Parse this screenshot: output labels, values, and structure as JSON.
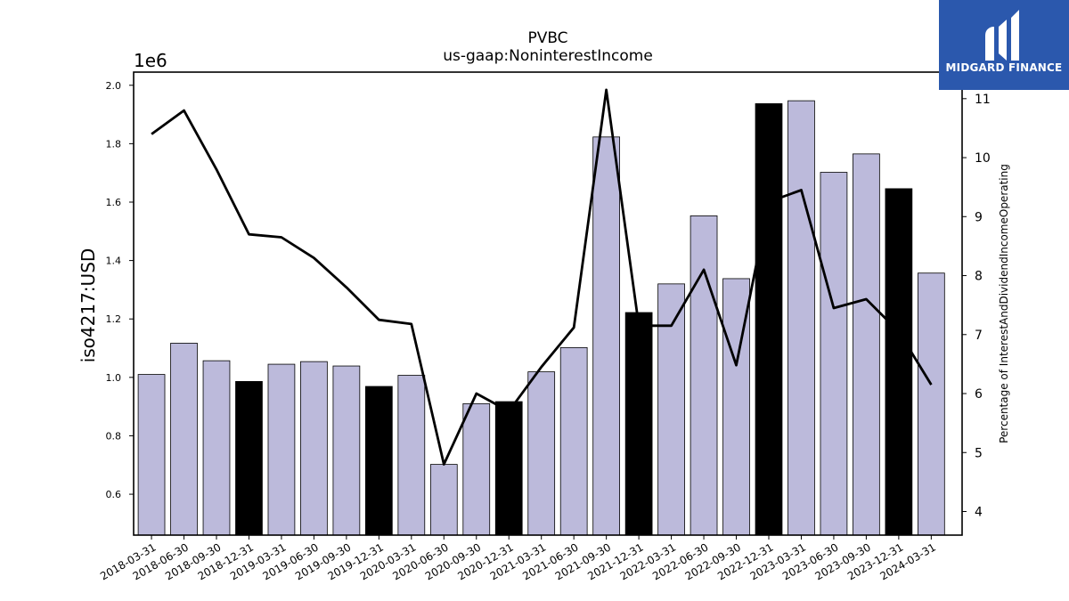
{
  "chart_data": {
    "type": "bar",
    "title": "PVBC",
    "subtitle": "us-gaap:NoninterestIncome",
    "ylabel": "iso4217:USD",
    "y_offset_label": "1e6",
    "y2label": "Percentage of InterestAndDividendIncomeOperating",
    "categories": [
      "2018-03-31",
      "2018-06-30",
      "2018-09-30",
      "2018-12-31",
      "2019-03-31",
      "2019-06-30",
      "2019-09-30",
      "2019-12-31",
      "2020-03-31",
      "2020-06-30",
      "2020-09-30",
      "2020-12-31",
      "2021-03-31",
      "2021-06-30",
      "2021-09-30",
      "2021-12-31",
      "2022-03-31",
      "2022-06-30",
      "2022-09-30",
      "2022-12-31",
      "2023-03-31",
      "2023-06-30",
      "2023-09-30",
      "2023-12-31",
      "2024-03-31"
    ],
    "series": [
      {
        "kind": "bar",
        "values": [
          1010000,
          1117000,
          1057000,
          986000,
          1045000,
          1054000,
          1039000,
          969000,
          1007000,
          702000,
          910000,
          917000,
          1019000,
          1102000,
          1823000,
          1222000,
          1320000,
          1553000,
          1338000,
          1937000,
          1947000,
          1702000,
          1765000,
          1646000,
          1357000
        ],
        "annual_flags": [
          false,
          false,
          false,
          true,
          false,
          false,
          false,
          true,
          false,
          false,
          false,
          true,
          false,
          false,
          false,
          true,
          false,
          false,
          false,
          true,
          false,
          false,
          false,
          true,
          false
        ],
        "color": "#bcbadb",
        "annual_color": "#000000"
      },
      {
        "kind": "line",
        "axis": "right",
        "values": [
          10.4,
          10.8,
          9.8,
          8.7,
          8.65,
          8.3,
          7.8,
          7.25,
          7.18,
          4.8,
          6.0,
          5.7,
          6.45,
          7.12,
          11.15,
          7.15,
          7.15,
          8.1,
          6.48,
          9.25,
          9.45,
          7.45,
          7.6,
          7.05,
          6.15
        ],
        "color": "#000000"
      }
    ],
    "ylim": [
      0.46,
      2.045
    ],
    "y2lim": [
      3.6,
      11.45
    ],
    "yticks": [
      "0.6",
      "0.8",
      "1.0",
      "1.2",
      "1.4",
      "1.6",
      "1.8",
      "2.0"
    ],
    "y2ticks": [
      "4",
      "5",
      "6",
      "7",
      "8",
      "9",
      "10",
      "11"
    ],
    "grid": false,
    "legend": "none"
  },
  "logo": {
    "text": "MIDGARD FINANCE",
    "color": "#2b58ad"
  }
}
